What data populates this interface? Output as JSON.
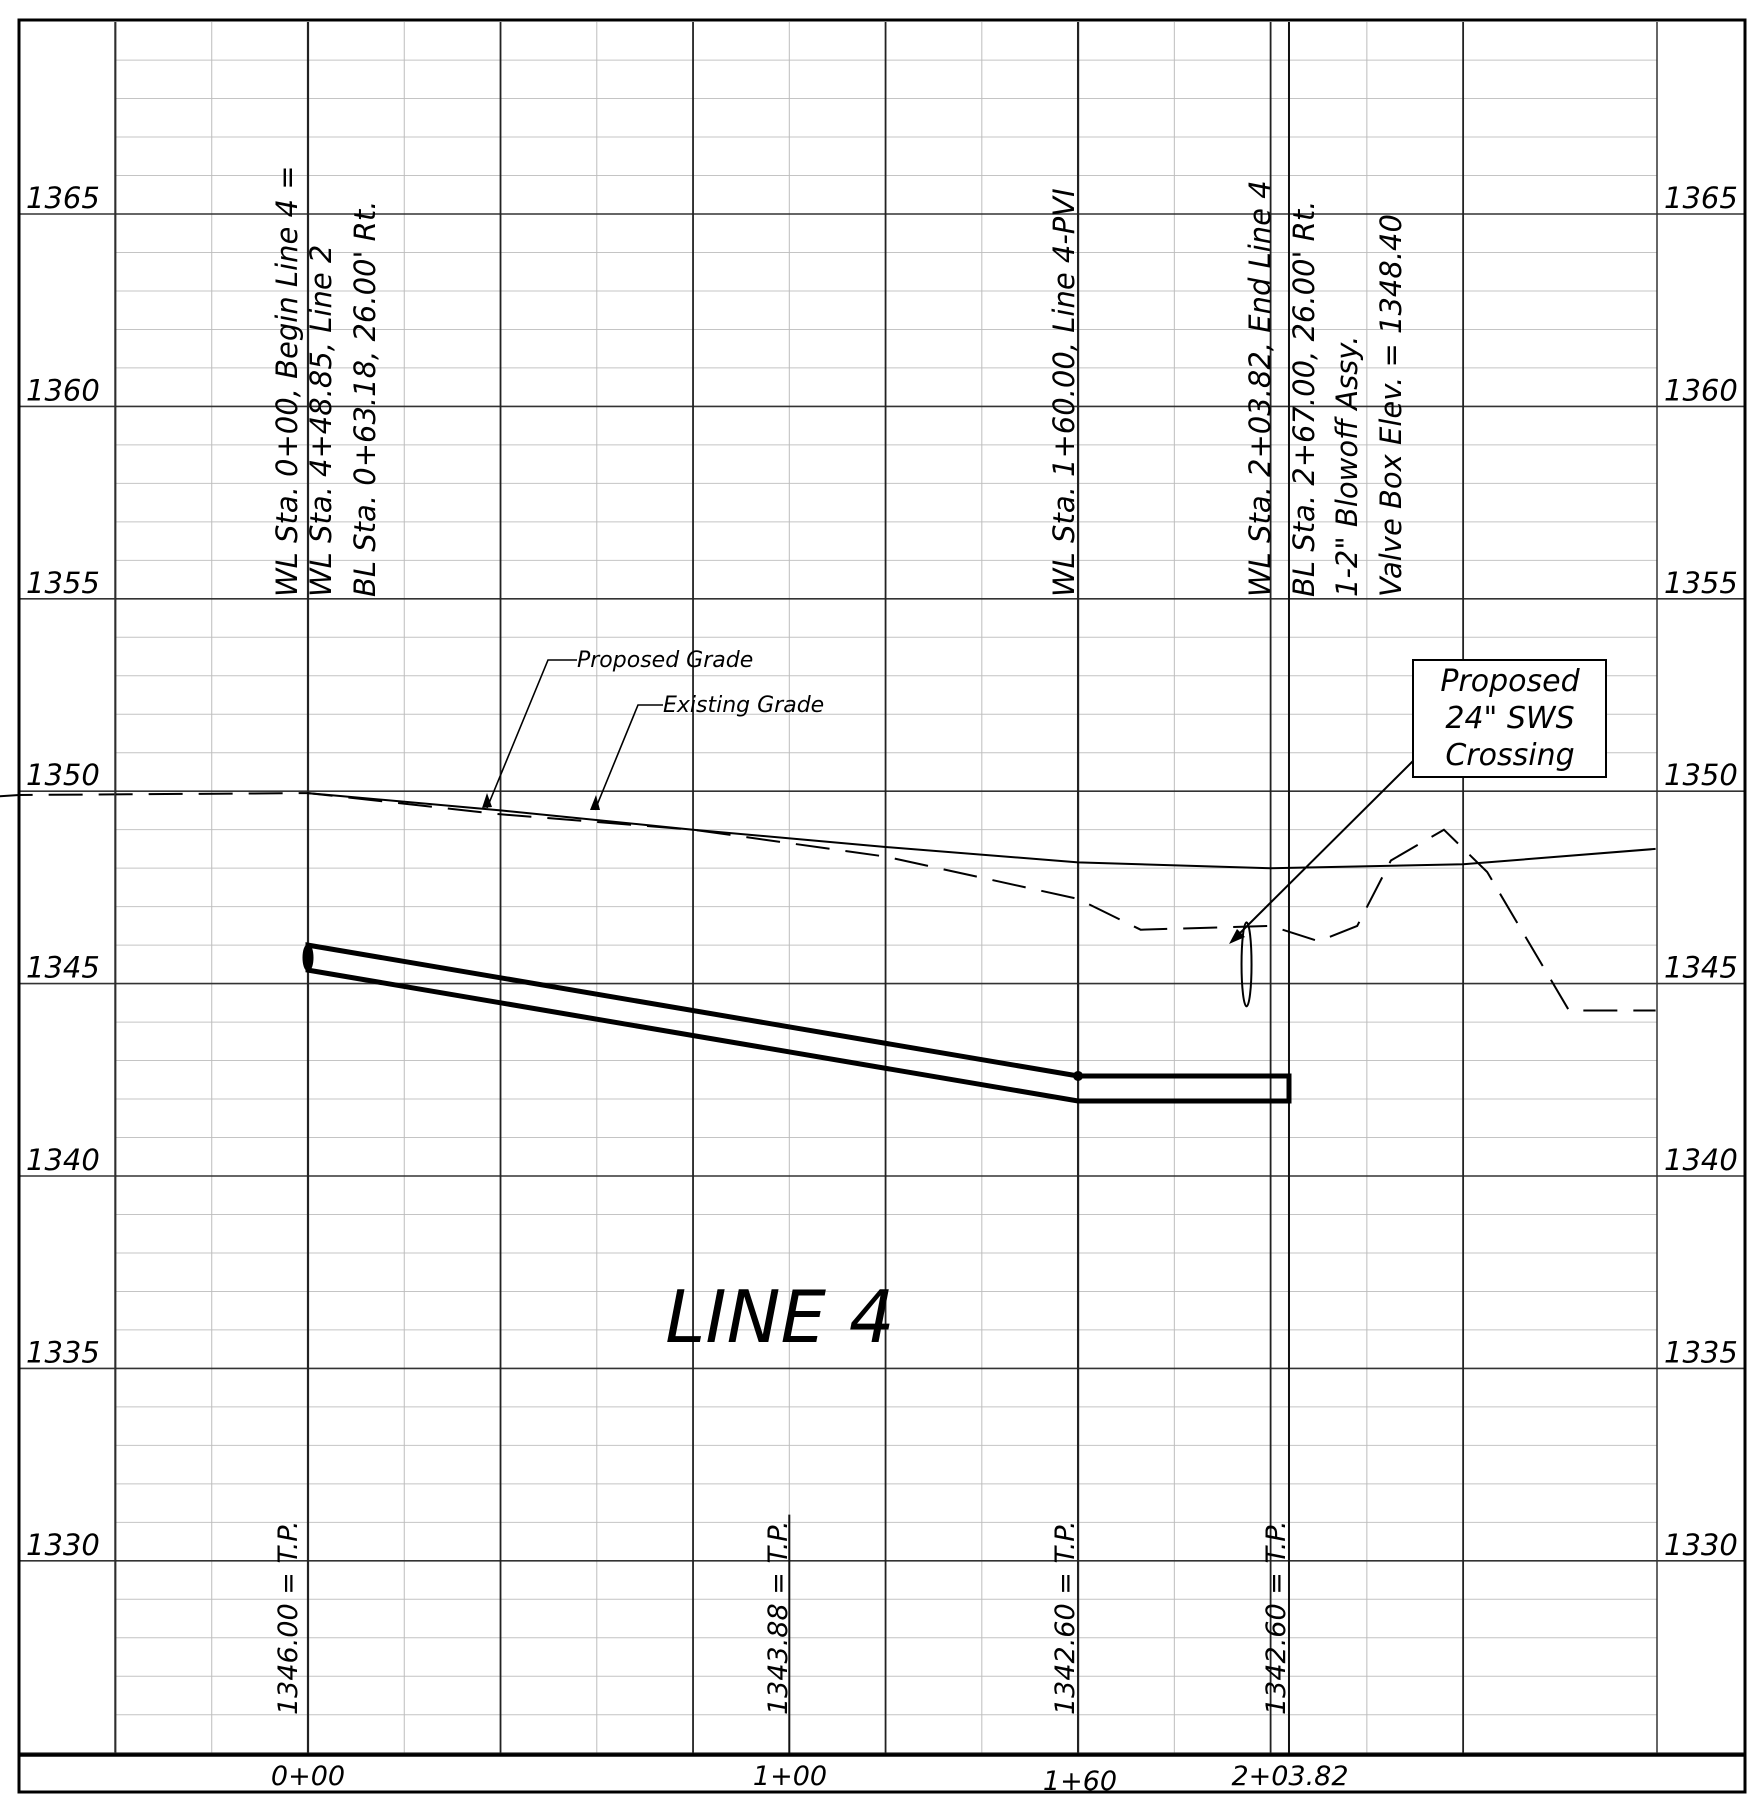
{
  "drawing": {
    "title": "LINE 4",
    "elevation_labels": [
      "1365",
      "1360",
      "1355",
      "1350",
      "1345",
      "1340",
      "1335",
      "1330"
    ],
    "station_labels": [
      "0+00",
      "1+00",
      "1+60",
      "2+03.82"
    ],
    "station_notes": [
      [
        "WL Sta. 0+00, Begin Line 4 =",
        "WL Sta. 4+48.85, Line 2",
        "BL Sta. 0+63.18, 26.00' Rt."
      ],
      [
        "WL Sta. 1+60.00, Line 4-PVI"
      ],
      [
        "WL Sta. 2+03.82, End Line 4",
        "BL Sta. 2+67.00, 26.00' Rt.",
        "1-2\" Blowoff Assy.",
        "Valve Box Elev. = 1348.40"
      ]
    ],
    "tp_labels": [
      "1346.00 = T.P.",
      "1343.88 = T.P.",
      "1342.60 = T.P.",
      "1342.60 = T.P."
    ],
    "leader_labels": {
      "proposed_grade": "Proposed Grade",
      "existing_grade": "Existing Grade"
    },
    "callout": [
      "Proposed",
      "24\" SWS",
      "Crossing"
    ]
  },
  "chart_data": {
    "type": "line",
    "title": "LINE 4",
    "xlabel": "",
    "ylabel": "",
    "x_ticks": [
      "0+00",
      "1+00",
      "1+60",
      "2+03.82"
    ],
    "ylim": [
      1325,
      1370
    ],
    "grid": true,
    "series": [
      {
        "name": "Proposed Grade",
        "style": "solid",
        "x": [
          0,
          40,
          80,
          120,
          160,
          200,
          240,
          280
        ],
        "y": [
          1349.95,
          1349.5,
          1349.0,
          1348.55,
          1348.15,
          1348.0,
          1348.1,
          1348.5
        ]
      },
      {
        "name": "Existing Grade",
        "style": "dashed",
        "x": [
          -85,
          -73,
          -60,
          0,
          40,
          80,
          120,
          160,
          173,
          200,
          210,
          218,
          225,
          236,
          245,
          262,
          280
        ],
        "y": [
          1349.9,
          1349.8,
          1349.9,
          1349.95,
          1349.4,
          1349.0,
          1348.3,
          1347.2,
          1346.4,
          1346.5,
          1346.1,
          1346.5,
          1348.2,
          1349.0,
          1347.9,
          1344.3,
          1344.3
        ]
      }
    ],
    "pipe": {
      "stations": [
        0,
        160,
        203.82
      ],
      "top_elevations": [
        1346.0,
        1342.6,
        1342.6
      ],
      "bottom_elevations": [
        1345.35,
        1341.95,
        1341.95
      ]
    },
    "sws_crossing": {
      "station": 195,
      "elevation": 1345.5
    }
  }
}
